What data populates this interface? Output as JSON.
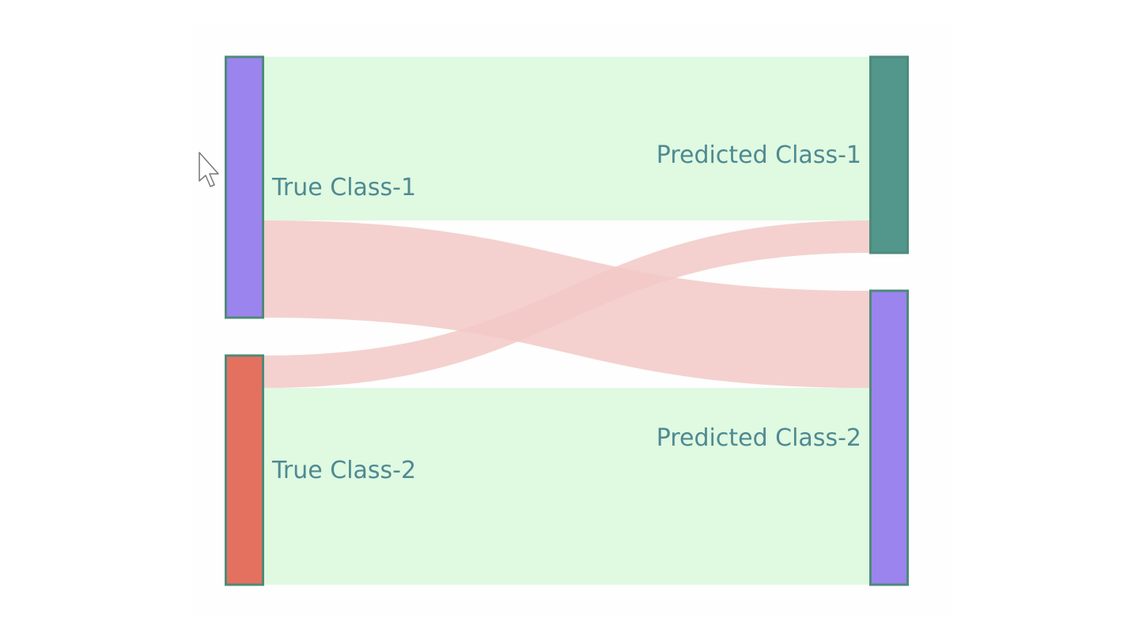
{
  "chart_data": {
    "type": "sankey",
    "title": "",
    "nodes": [
      {
        "id": "true1",
        "label": "True Class-1",
        "side": "source",
        "color": "#9b84ee"
      },
      {
        "id": "true2",
        "label": "True Class-2",
        "side": "source",
        "color": "#e4715f"
      },
      {
        "id": "pred1",
        "label": "Predicted Class-1",
        "side": "target",
        "color": "#52968c"
      },
      {
        "id": "pred2",
        "label": "Predicted Class-2",
        "side": "target",
        "color": "#9b84ee"
      }
    ],
    "links": [
      {
        "source": "true1",
        "target": "pred1",
        "value": 207,
        "color": "#e0f9e1",
        "kind": "correct"
      },
      {
        "source": "true1",
        "target": "pred2",
        "value": 123,
        "color": "#f2c9c6",
        "kind": "misclassified"
      },
      {
        "source": "true2",
        "target": "pred1",
        "value": 41,
        "color": "#f2c9c6",
        "kind": "misclassified"
      },
      {
        "source": "true2",
        "target": "pred2",
        "value": 249,
        "color": "#e0f9e1",
        "kind": "correct"
      }
    ],
    "node_border_color": "#4e8a7a",
    "label_color": "#4e8a92"
  }
}
